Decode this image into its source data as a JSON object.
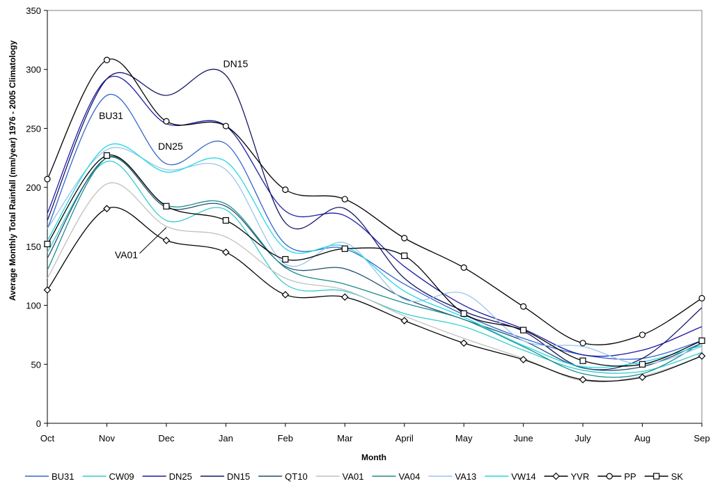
{
  "chart_data": {
    "type": "line",
    "title": "",
    "xlabel": "Month",
    "ylabel": "Average Monthly Total Rainfall (mm/year) 1976 - 2005 Climatology",
    "categories": [
      "Oct",
      "Nov",
      "Dec",
      "Jan",
      "Feb",
      "Mar",
      "April",
      "May",
      "June",
      "July",
      "Aug",
      "Sep"
    ],
    "ylim": [
      0,
      350
    ],
    "yticks": [
      0,
      50,
      100,
      150,
      200,
      250,
      300,
      350
    ],
    "grid": false,
    "legend_position": "bottom",
    "series": [
      {
        "name": "BU31",
        "color": "#3366cc",
        "marker": "none",
        "values": [
          165,
          278,
          220,
          237,
          152,
          148,
          118,
          92,
          72,
          58,
          55,
          70
        ]
      },
      {
        "name": "CW09",
        "color": "#33cccc",
        "marker": "none",
        "values": [
          145,
          222,
          172,
          181,
          118,
          112,
          93,
          82,
          62,
          45,
          44,
          60
        ]
      },
      {
        "name": "DN25",
        "color": "#1a1aa8",
        "marker": "none",
        "values": [
          178,
          292,
          254,
          252,
          180,
          176,
          133,
          100,
          80,
          58,
          62,
          82
        ]
      },
      {
        "name": "DN15",
        "color": "#141466",
        "marker": "none",
        "values": [
          172,
          292,
          278,
          295,
          170,
          182,
          123,
          95,
          78,
          47,
          55,
          98
        ]
      },
      {
        "name": "QT10",
        "color": "#1f4f6b",
        "marker": "none",
        "values": [
          140,
          225,
          183,
          184,
          133,
          131,
          106,
          88,
          70,
          47,
          48,
          68
        ]
      },
      {
        "name": "VA01",
        "color": "#c0c0c0",
        "marker": "none",
        "values": [
          123,
          203,
          167,
          158,
          123,
          113,
          91,
          72,
          55,
          36,
          40,
          57
        ]
      },
      {
        "name": "VA04",
        "color": "#1a8c8c",
        "marker": "none",
        "values": [
          130,
          225,
          185,
          186,
          132,
          118,
          102,
          88,
          65,
          42,
          42,
          68
        ]
      },
      {
        "name": "VA13",
        "color": "#99c4ee",
        "marker": "none",
        "values": [
          165,
          232,
          215,
          215,
          135,
          153,
          105,
          110,
          70,
          65,
          50,
          65
        ]
      },
      {
        "name": "VW14",
        "color": "#22d8e0",
        "marker": "none",
        "values": [
          155,
          235,
          213,
          222,
          148,
          150,
          112,
          90,
          66,
          48,
          52,
          66
        ]
      },
      {
        "name": "YVR",
        "color": "#000000",
        "marker": "diamond",
        "values": [
          113,
          182,
          155,
          145,
          109,
          107,
          87,
          68,
          54,
          37,
          39,
          57
        ]
      },
      {
        "name": "PP",
        "color": "#000000",
        "marker": "circle",
        "values": [
          207,
          308,
          256,
          252,
          198,
          190,
          157,
          132,
          99,
          68,
          75,
          106
        ]
      },
      {
        "name": "SK",
        "color": "#000000",
        "marker": "square",
        "values": [
          152,
          227,
          184,
          172,
          139,
          148,
          142,
          93,
          79,
          53,
          50,
          70
        ]
      }
    ],
    "annotations": [
      {
        "text": "DN15",
        "x": "Jan",
        "y": 302
      },
      {
        "text": "BU31",
        "x": "Nov",
        "y": 258
      },
      {
        "text": "DN25",
        "x": "Dec",
        "y": 232
      },
      {
        "text": "VA01",
        "x": "Nov",
        "y": 140
      }
    ]
  }
}
